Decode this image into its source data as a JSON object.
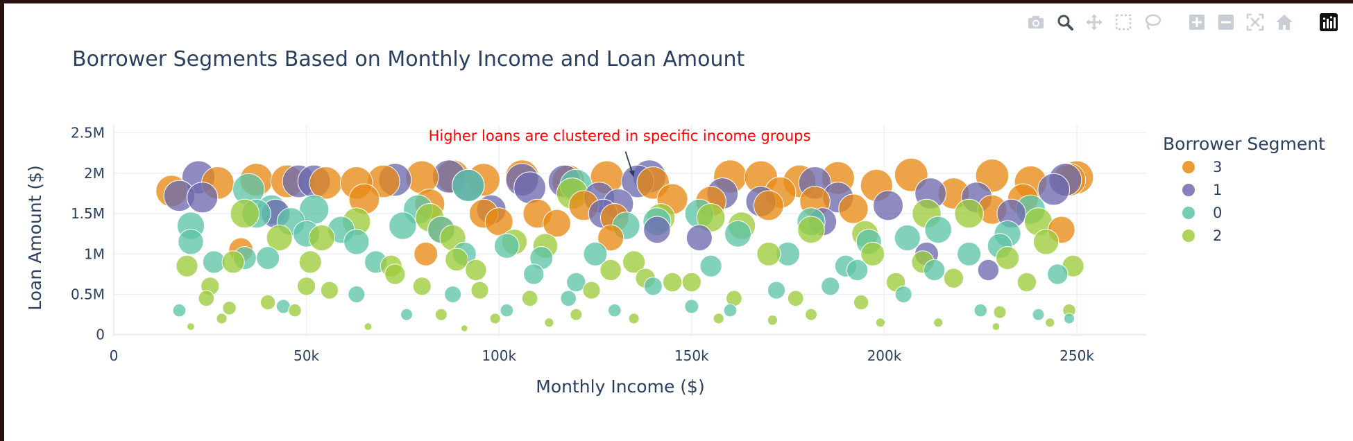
{
  "modebar": {
    "buttons": [
      "camera-icon",
      "zoom-icon",
      "pan-icon",
      "box-select-icon",
      "lasso-select-icon",
      "zoom-in-icon",
      "zoom-out-icon",
      "autoscale-icon",
      "reset-axes-icon",
      "plotly-logo-icon"
    ]
  },
  "colors": {
    "segment_3": "#e88a14",
    "segment_1": "#6d6aae",
    "segment_0": "#5ec4a8",
    "segment_2": "#9ccc3c",
    "annotation": "#ff0000",
    "text": "#2a3f5f",
    "grid": "#ebf0f8"
  },
  "chart_data": {
    "type": "scatter",
    "title": "Borrower Segments Based on Monthly Income and Loan Amount",
    "xlabel": "Monthly Income ($)",
    "ylabel": "Loan Amount ($)",
    "xlim": [
      0,
      268000
    ],
    "ylim": [
      -20000,
      2600000
    ],
    "x_ticks": [
      0,
      50000,
      100000,
      150000,
      200000,
      250000
    ],
    "x_tick_labels": [
      "0",
      "50k",
      "100k",
      "150k",
      "200k",
      "250k"
    ],
    "y_ticks": [
      0,
      500000,
      1000000,
      1500000,
      2000000,
      2500000
    ],
    "y_tick_labels": [
      "0",
      "0.5M",
      "1M",
      "1.5M",
      "2M",
      "2.5M"
    ],
    "grid": true,
    "marker_size": "proportional to loan amount",
    "legend_title": "Borrower Segment",
    "legend_position": "right",
    "annotation": {
      "text": "Higher loans are clustered in specific income groups",
      "x": 135000,
      "y": 1950000
    },
    "series": [
      {
        "name": "3",
        "color": "#e88a14",
        "points": [
          [
            15000,
            1780000
          ],
          [
            27000,
            1880000
          ],
          [
            37000,
            1920000
          ],
          [
            45000,
            1900000
          ],
          [
            55000,
            1880000
          ],
          [
            63000,
            1880000
          ],
          [
            70000,
            1900000
          ],
          [
            80000,
            1950000
          ],
          [
            88000,
            1960000
          ],
          [
            96000,
            1920000
          ],
          [
            106000,
            1960000
          ],
          [
            118000,
            1900000
          ],
          [
            128000,
            1950000
          ],
          [
            140000,
            1880000
          ],
          [
            160000,
            1960000
          ],
          [
            168000,
            1950000
          ],
          [
            178000,
            1900000
          ],
          [
            188000,
            1940000
          ],
          [
            198000,
            1850000
          ],
          [
            207000,
            1980000
          ],
          [
            218000,
            1750000
          ],
          [
            228000,
            1970000
          ],
          [
            238000,
            1890000
          ],
          [
            248000,
            1920000
          ],
          [
            250000,
            1950000
          ],
          [
            65000,
            1680000
          ],
          [
            82000,
            1620000
          ],
          [
            96000,
            1500000
          ],
          [
            110000,
            1500000
          ],
          [
            122000,
            1600000
          ],
          [
            130000,
            1450000
          ],
          [
            145000,
            1680000
          ],
          [
            170000,
            1600000
          ],
          [
            182000,
            1650000
          ],
          [
            192000,
            1560000
          ],
          [
            228000,
            1550000
          ],
          [
            236000,
            1680000
          ],
          [
            85000,
            1300000
          ],
          [
            115000,
            1380000
          ],
          [
            100000,
            1400000
          ],
          [
            246000,
            1300000
          ],
          [
            33000,
            1050000
          ],
          [
            81000,
            1000000
          ],
          [
            129000,
            1200000
          ],
          [
            155000,
            1650000
          ],
          [
            173000,
            1760000
          ]
        ]
      },
      {
        "name": "1",
        "color": "#6d6aae",
        "points": [
          [
            22000,
            1950000
          ],
          [
            17000,
            1720000
          ],
          [
            23000,
            1700000
          ],
          [
            48000,
            1900000
          ],
          [
            52000,
            1900000
          ],
          [
            73000,
            1920000
          ],
          [
            87000,
            1960000
          ],
          [
            92000,
            1850000
          ],
          [
            106000,
            1920000
          ],
          [
            108000,
            1820000
          ],
          [
            117000,
            1900000
          ],
          [
            126000,
            1700000
          ],
          [
            131000,
            1620000
          ],
          [
            136000,
            1900000
          ],
          [
            139000,
            1960000
          ],
          [
            158000,
            1750000
          ],
          [
            168000,
            1650000
          ],
          [
            182000,
            1880000
          ],
          [
            188000,
            1700000
          ],
          [
            201000,
            1600000
          ],
          [
            212000,
            1750000
          ],
          [
            224000,
            1700000
          ],
          [
            233000,
            1500000
          ],
          [
            247000,
            1920000
          ],
          [
            244000,
            1800000
          ],
          [
            127000,
            1500000
          ],
          [
            141000,
            1300000
          ],
          [
            152000,
            1200000
          ],
          [
            98000,
            1550000
          ],
          [
            42000,
            1500000
          ],
          [
            211000,
            1000000
          ],
          [
            227000,
            800000
          ],
          [
            184000,
            1400000
          ]
        ]
      },
      {
        "name": "0",
        "color": "#5ec4a8",
        "points": [
          [
            35000,
            1800000
          ],
          [
            37000,
            1500000
          ],
          [
            20000,
            1350000
          ],
          [
            20000,
            1150000
          ],
          [
            26000,
            900000
          ],
          [
            34000,
            950000
          ],
          [
            41000,
            1550000
          ],
          [
            46000,
            1400000
          ],
          [
            52000,
            1550000
          ],
          [
            59000,
            1300000
          ],
          [
            63000,
            1150000
          ],
          [
            68000,
            900000
          ],
          [
            75000,
            1350000
          ],
          [
            79000,
            1550000
          ],
          [
            85000,
            1300000
          ],
          [
            92000,
            1850000
          ],
          [
            91000,
            1000000
          ],
          [
            102000,
            1100000
          ],
          [
            111000,
            950000
          ],
          [
            120000,
            1850000
          ],
          [
            125000,
            1000000
          ],
          [
            133000,
            1350000
          ],
          [
            141000,
            1400000
          ],
          [
            152000,
            1500000
          ],
          [
            155000,
            850000
          ],
          [
            162000,
            1250000
          ],
          [
            175000,
            1000000
          ],
          [
            181000,
            1400000
          ],
          [
            190000,
            850000
          ],
          [
            196000,
            1150000
          ],
          [
            206000,
            1200000
          ],
          [
            214000,
            1300000
          ],
          [
            222000,
            1000000
          ],
          [
            232000,
            1250000
          ],
          [
            238000,
            1550000
          ],
          [
            245000,
            750000
          ],
          [
            88000,
            500000
          ],
          [
            120000,
            650000
          ],
          [
            63000,
            500000
          ],
          [
            150000,
            350000
          ],
          [
            193000,
            800000
          ],
          [
            213000,
            800000
          ],
          [
            40000,
            950000
          ],
          [
            50000,
            1250000
          ],
          [
            109000,
            750000
          ],
          [
            172000,
            550000
          ],
          [
            230000,
            1100000
          ],
          [
            17000,
            300000
          ],
          [
            44000,
            350000
          ],
          [
            76000,
            250000
          ],
          [
            118000,
            450000
          ],
          [
            160000,
            300000
          ],
          [
            205000,
            500000
          ],
          [
            225000,
            300000
          ],
          [
            240000,
            250000
          ],
          [
            102000,
            300000
          ],
          [
            130000,
            300000
          ],
          [
            248000,
            200000
          ],
          [
            186000,
            600000
          ],
          [
            140000,
            600000
          ]
        ]
      },
      {
        "name": "2",
        "color": "#9ccc3c",
        "points": [
          [
            19000,
            850000
          ],
          [
            25000,
            600000
          ],
          [
            31000,
            900000
          ],
          [
            34000,
            1500000
          ],
          [
            43000,
            1200000
          ],
          [
            51000,
            900000
          ],
          [
            54000,
            1200000
          ],
          [
            63000,
            1400000
          ],
          [
            72000,
            850000
          ],
          [
            82000,
            1450000
          ],
          [
            88000,
            1200000
          ],
          [
            94000,
            800000
          ],
          [
            104000,
            1150000
          ],
          [
            112000,
            1100000
          ],
          [
            119000,
            1750000
          ],
          [
            129000,
            800000
          ],
          [
            135000,
            900000
          ],
          [
            142000,
            1450000
          ],
          [
            155000,
            1450000
          ],
          [
            163000,
            1350000
          ],
          [
            170000,
            1000000
          ],
          [
            181000,
            1300000
          ],
          [
            195000,
            1250000
          ],
          [
            211000,
            1500000
          ],
          [
            222000,
            1500000
          ],
          [
            232000,
            950000
          ],
          [
            240000,
            1400000
          ],
          [
            249000,
            850000
          ],
          [
            242000,
            1150000
          ],
          [
            210000,
            900000
          ],
          [
            24000,
            450000
          ],
          [
            30000,
            330000
          ],
          [
            40000,
            400000
          ],
          [
            47000,
            300000
          ],
          [
            50000,
            600000
          ],
          [
            56000,
            550000
          ],
          [
            73000,
            750000
          ],
          [
            80000,
            600000
          ],
          [
            95000,
            550000
          ],
          [
            108000,
            450000
          ],
          [
            124000,
            550000
          ],
          [
            138000,
            700000
          ],
          [
            150000,
            650000
          ],
          [
            161000,
            450000
          ],
          [
            177000,
            450000
          ],
          [
            194000,
            400000
          ],
          [
            203000,
            650000
          ],
          [
            218000,
            700000
          ],
          [
            237000,
            650000
          ],
          [
            248000,
            300000
          ],
          [
            85000,
            250000
          ],
          [
            99000,
            200000
          ],
          [
            120000,
            250000
          ],
          [
            135000,
            200000
          ],
          [
            157000,
            200000
          ],
          [
            181000,
            250000
          ],
          [
            199000,
            150000
          ],
          [
            214000,
            150000
          ],
          [
            230000,
            280000
          ],
          [
            28000,
            200000
          ],
          [
            20000,
            100000
          ],
          [
            66000,
            100000
          ],
          [
            91000,
            80000
          ],
          [
            113000,
            150000
          ],
          [
            171000,
            180000
          ],
          [
            229000,
            100000
          ],
          [
            243000,
            150000
          ],
          [
            89000,
            930000
          ],
          [
            145000,
            650000
          ],
          [
            197000,
            1000000
          ]
        ]
      }
    ]
  }
}
